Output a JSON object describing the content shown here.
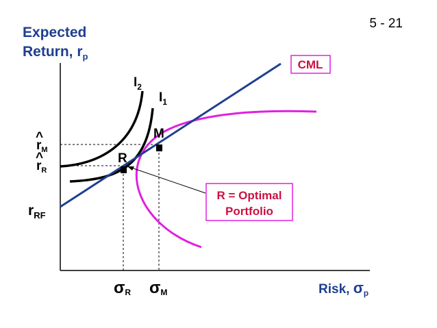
{
  "slide_number": "5 - 21",
  "y_axis_label": {
    "line1": "Expected",
    "line2_main": "Return, r",
    "line2_sub": "p"
  },
  "x_axis_label": {
    "main": "Risk, ",
    "sigma": "σ",
    "sub": "p"
  },
  "cml_label": "CML",
  "curve_labels": {
    "i2_main": "I",
    "i2_sub": "2",
    "i1_main": "I",
    "i1_sub": "1"
  },
  "points": {
    "m_label": "M",
    "r_label": "R"
  },
  "y_ticks": {
    "rm_main": "r",
    "rm_sub": "M",
    "rm_hat": "^",
    "rr_main": "r",
    "rr_sub": "R",
    "rr_hat": "^",
    "rrf_main": "r",
    "rrf_sub": "RF"
  },
  "x_ticks": {
    "sr_sigma": "σ",
    "sr_sub": "R",
    "sm_sigma": "σ",
    "sm_sub": "M"
  },
  "callout": {
    "line1": "R = Optimal",
    "line2": "Portfolio"
  },
  "colors": {
    "axis": "#000000",
    "cml": "#1f3f8f",
    "frontier": "#e020e0",
    "indifference": "#000000",
    "text_blue": "#1f3f8f",
    "text_red": "#cc1040",
    "callout_border": "#e020e0"
  }
}
